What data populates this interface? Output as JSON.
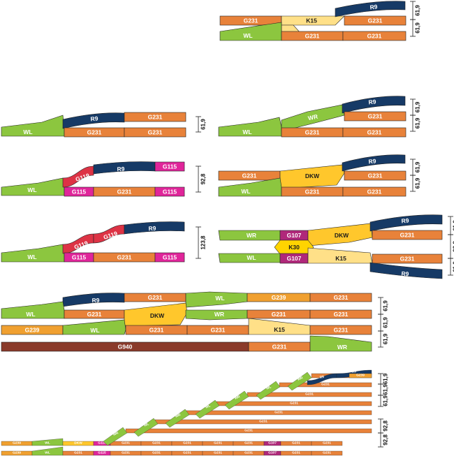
{
  "colors": {
    "G231": "#e8823a",
    "G239": "#f0a030",
    "G115": "#e0259a",
    "G107": "#b0287a",
    "G940": "#8a3a2a",
    "G119": "#dd3345",
    "R9": "#163a66",
    "WL": "#8cc63f",
    "WR": "#8cc63f",
    "DKW": "#ffc72c",
    "K15": "#ffe088",
    "K30": "#ffd400"
  },
  "labels": {
    "G231": "G231",
    "G239": "G239",
    "G115": "G115",
    "G107": "G107",
    "G940": "G940",
    "G119": "G119",
    "R9": "R9",
    "WL": "WL",
    "WR": "WR",
    "DKW": "DKW",
    "K15": "K15",
    "K30": "K30"
  },
  "dimensions": {
    "d61_9": "61,9",
    "d92_8": "92,8",
    "d123_8": "123,8"
  }
}
